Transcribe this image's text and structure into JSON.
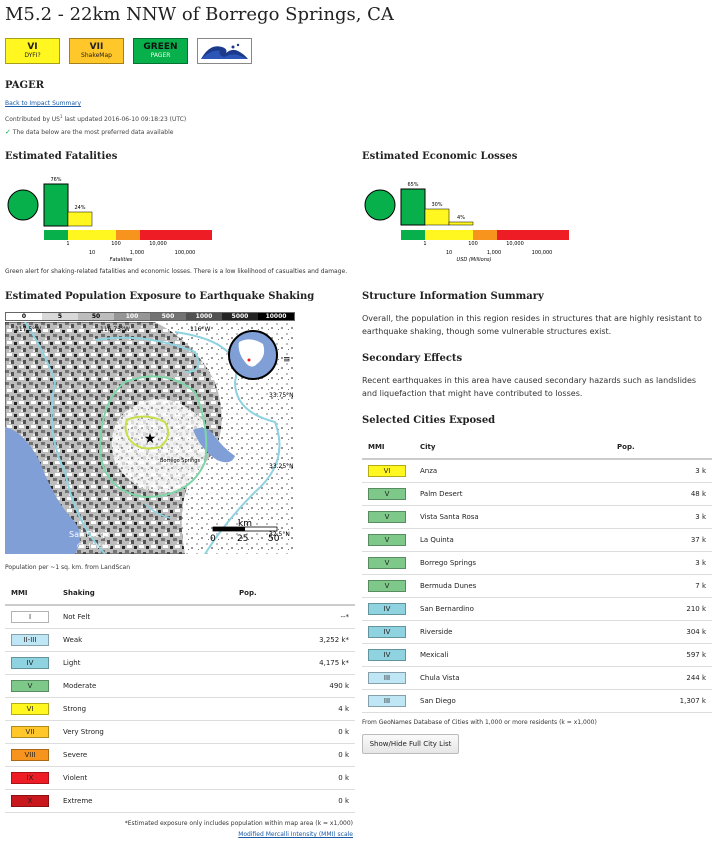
{
  "title": "M5.2 - 22km NNW of Borrego Springs, CA",
  "badges": [
    {
      "value": "VI",
      "label": "DYFI?",
      "color": "#fff71f"
    },
    {
      "value": "VII",
      "label": "ShakeMap",
      "color": "#ffc72a"
    },
    {
      "value": "GREEN",
      "label": "PAGER",
      "color": "#07b04b"
    }
  ],
  "logo_icon": "tsunami-wave-icon",
  "section_title": "PAGER",
  "back_link": "Back to Impact Summary",
  "contributed": "Contributed by US",
  "contributed_sup": "1",
  "last_updated": "last updated 2016-06-10 09:18:23 (UTC)",
  "preferred_note": "The data below are the most preferred data available",
  "fatalities": {
    "title": "Estimated Fatalities",
    "alert_color": "#07b04b",
    "bars": [
      {
        "pct": "76%",
        "value": 76,
        "color": "#07b04b"
      },
      {
        "pct": "24%",
        "value": 24,
        "color": "#fff71f"
      }
    ],
    "scale_top": [
      "1",
      "100",
      "10,000"
    ],
    "scale_bottom": [
      "10",
      "1,000",
      "100,000"
    ],
    "axis_label": "Fatalities"
  },
  "losses": {
    "title": "Estimated Economic Losses",
    "alert_color": "#07b04b",
    "bars": [
      {
        "pct": "65%",
        "value": 65,
        "color": "#07b04b"
      },
      {
        "pct": "30%",
        "value": 30,
        "color": "#fff71f"
      },
      {
        "pct": "4%",
        "value": 4,
        "color": "#fff71f"
      }
    ],
    "scale_top": [
      "1",
      "100",
      "10,000"
    ],
    "scale_bottom": [
      "10",
      "1,000",
      "100,000"
    ],
    "axis_label": "USD (Millions)"
  },
  "scale_colors": [
    "#07b04b",
    "#fff71f",
    "#fff71f",
    "#f7941d",
    "#ee1c24",
    "#ee1c24"
  ],
  "alert_text": "Green alert for shaking-related fatalities and economic losses. There is a low likelihood of casualties and damage.",
  "exposure": {
    "title": "Estimated Population Exposure to Earthquake Shaking",
    "legend": [
      "0",
      "5",
      "50",
      "100",
      "500",
      "1000",
      "5000",
      "10000"
    ],
    "legend_colors": [
      "#ffffff",
      "#d9d9d9",
      "#bdbdbd",
      "#969696",
      "#737373",
      "#525252",
      "#252525",
      "#000000"
    ],
    "map_labels": {
      "lon1": "117.5°W",
      "lon2": "116.75°W",
      "lon3": "116°W",
      "lat1": "33.75°N",
      "lat2": "33.25°N",
      "lat3": "32.5°N",
      "city1": "Borrego Springs",
      "city2": "San Diego",
      "city3": "Chula Vista",
      "km": "km",
      "km0": "0",
      "km25": "25",
      "km50": "50"
    },
    "caption": "Population per ~1 sq. km. from LandScan"
  },
  "mmi_table": {
    "headers": [
      "MMI",
      "Shaking",
      "Pop."
    ],
    "rows": [
      {
        "mmi": "I",
        "shaking": "Not Felt",
        "pop": "--*",
        "color": "#ffffff"
      },
      {
        "mmi": "II-III",
        "shaking": "Weak",
        "pop": "3,252 k*",
        "color": "#bfe6f5"
      },
      {
        "mmi": "IV",
        "shaking": "Light",
        "pop": "4,175 k*",
        "color": "#8fd3e0"
      },
      {
        "mmi": "V",
        "shaking": "Moderate",
        "pop": "490 k",
        "color": "#7ec98a"
      },
      {
        "mmi": "VI",
        "shaking": "Strong",
        "pop": "4 k",
        "color": "#fff71f"
      },
      {
        "mmi": "VII",
        "shaking": "Very Strong",
        "pop": "0 k",
        "color": "#ffc72a"
      },
      {
        "mmi": "VIII",
        "shaking": "Severe",
        "pop": "0 k",
        "color": "#f7941d"
      },
      {
        "mmi": "IX",
        "shaking": "Violent",
        "pop": "0 k",
        "color": "#ee1c24"
      },
      {
        "mmi": "X",
        "shaking": "Extreme",
        "pop": "0 k",
        "color": "#c8171d"
      }
    ],
    "footnote": "*Estimated exposure only includes population within map area (k = x1,000)",
    "mmi_link": "Modified Mercalli Intensity (MMI) scale"
  },
  "structure": {
    "title": "Structure Information Summary",
    "text": "Overall, the population in this region resides in structures that are highly resistant to earthquake shaking, though some vulnerable structures exist."
  },
  "secondary": {
    "title": "Secondary Effects",
    "text": "Recent earthquakes in this area have caused secondary hazards such as landslides and liquefaction that might have contributed to losses."
  },
  "cities": {
    "title": "Selected Cities Exposed",
    "headers": [
      "MMI",
      "City",
      "Pop."
    ],
    "rows": [
      {
        "mmi": "VI",
        "city": "Anza",
        "pop": "3 k",
        "color": "#fff71f"
      },
      {
        "mmi": "V",
        "city": "Palm Desert",
        "pop": "48 k",
        "color": "#7ec98a"
      },
      {
        "mmi": "V",
        "city": "Vista Santa Rosa",
        "pop": "3 k",
        "color": "#7ec98a"
      },
      {
        "mmi": "V",
        "city": "La Quinta",
        "pop": "37 k",
        "color": "#7ec98a"
      },
      {
        "mmi": "V",
        "city": "Borrego Springs",
        "pop": "3 k",
        "color": "#7ec98a"
      },
      {
        "mmi": "V",
        "city": "Bermuda Dunes",
        "pop": "7 k",
        "color": "#7ec98a"
      },
      {
        "mmi": "IV",
        "city": "San Bernardino",
        "pop": "210 k",
        "color": "#8fd3e0"
      },
      {
        "mmi": "IV",
        "city": "Riverside",
        "pop": "304 k",
        "color": "#8fd3e0"
      },
      {
        "mmi": "IV",
        "city": "Mexicali",
        "pop": "597 k",
        "color": "#8fd3e0"
      },
      {
        "mmi": "III",
        "city": "Chula Vista",
        "pop": "244 k",
        "color": "#bfe6f5"
      },
      {
        "mmi": "III",
        "city": "San Diego",
        "pop": "1,307 k",
        "color": "#bfe6f5"
      }
    ],
    "source": "From GeoNames Database of Cities with 1,000 or more residents (k = x1,000)",
    "button": "Show/Hide Full City List"
  }
}
